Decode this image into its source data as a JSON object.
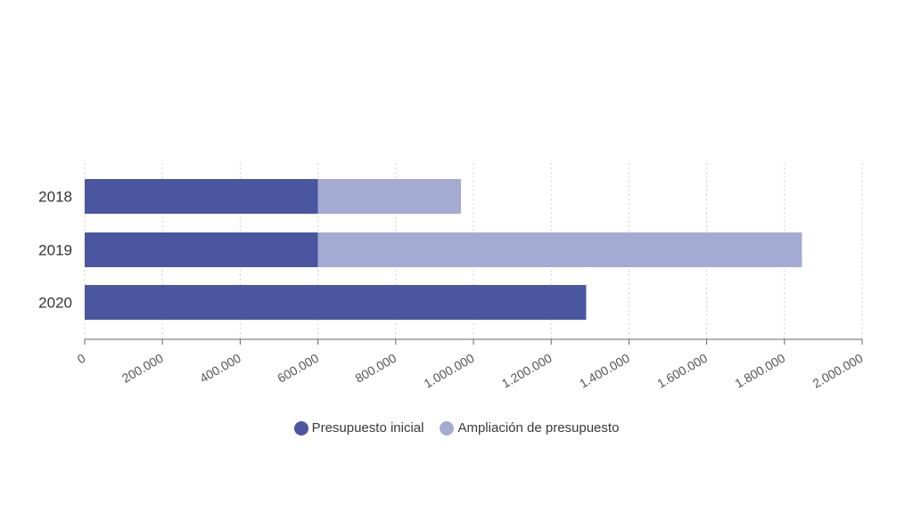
{
  "chart_data": {
    "type": "bar",
    "orientation": "horizontal",
    "stacked": true,
    "categories": [
      "2018",
      "2019",
      "2020"
    ],
    "series": [
      {
        "name": "Presupuesto inicial",
        "color": "#4a56a0",
        "values": [
          600000,
          600000,
          1290000
        ]
      },
      {
        "name": "Ampliación de presupuesto",
        "color": "#a3abd2",
        "values": [
          368000,
          1245000,
          0
        ]
      }
    ],
    "xlim": [
      0,
      2000000
    ],
    "xticks": [
      "0",
      "200.000",
      "400.000",
      "600.000",
      "800.000",
      "1.000.000",
      "1.200.000",
      "1.400.000",
      "1.600.000",
      "1.800.000",
      "2.000.000"
    ],
    "grid": "vertical-dotted",
    "legend_position": "bottom"
  }
}
